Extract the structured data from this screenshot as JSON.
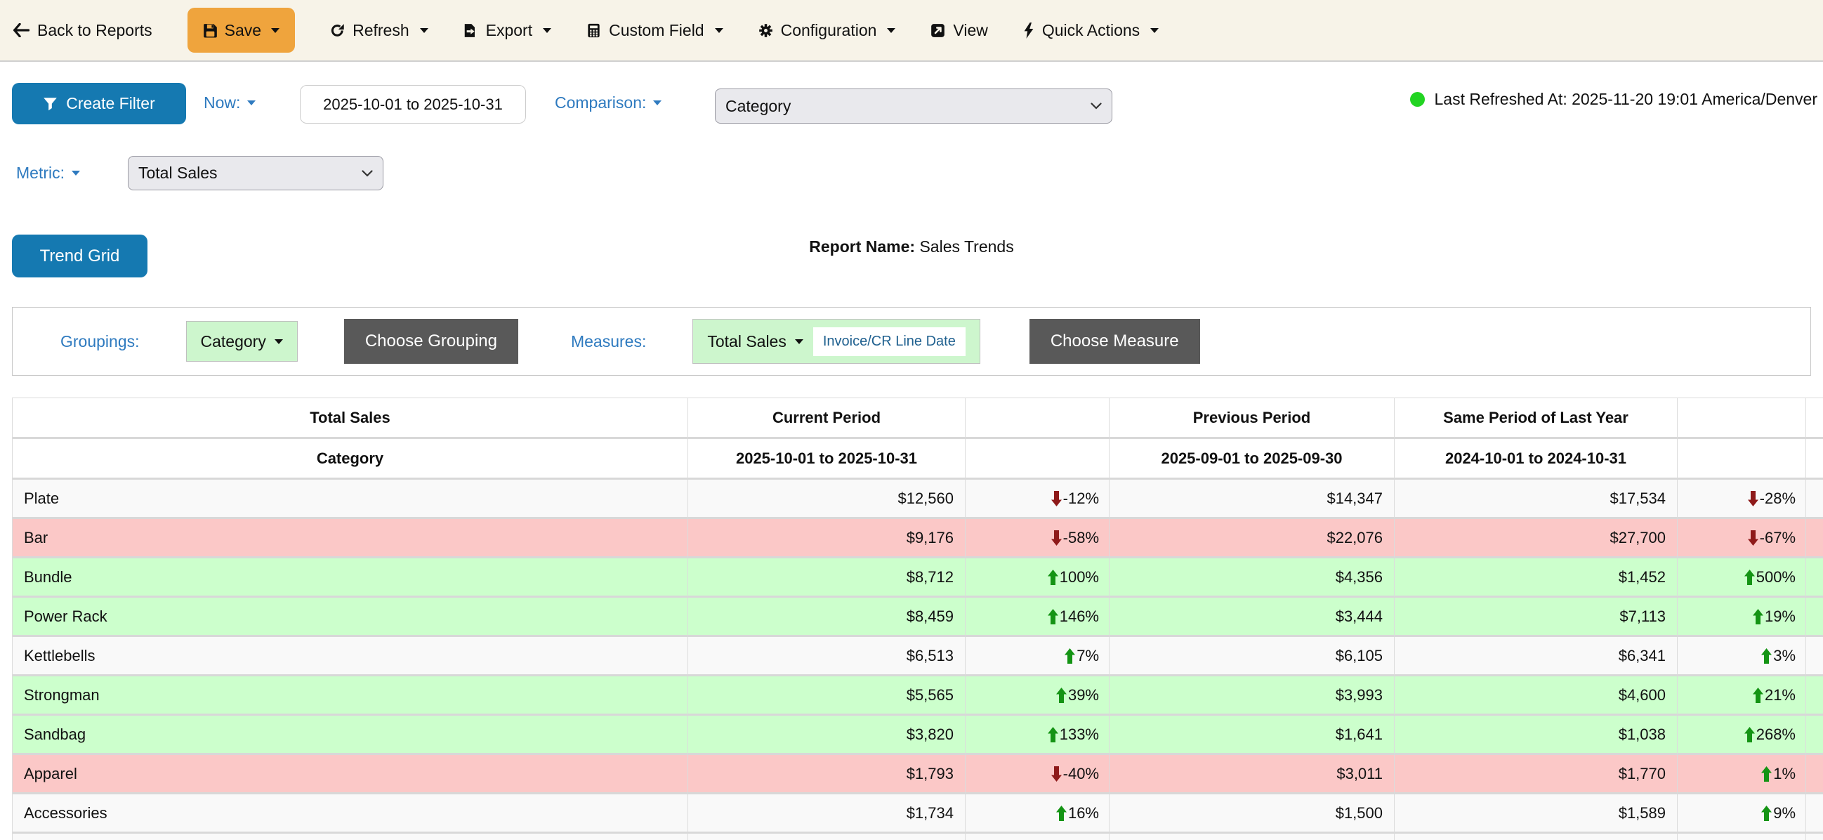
{
  "toolbar": {
    "back_label": "Back to Reports",
    "save_label": "Save",
    "refresh_label": "Refresh",
    "export_label": "Export",
    "custom_field_label": "Custom Field",
    "configuration_label": "Configuration",
    "view_label": "View",
    "quick_actions_label": "Quick Actions"
  },
  "filter_bar": {
    "create_filter_label": "Create Filter",
    "now_label": "Now:",
    "date_range_value": "2025-10-01 to 2025-10-31",
    "comparison_label": "Comparison:",
    "comparison_selected": "Category",
    "metric_label": "Metric:",
    "metric_selected": "Total Sales",
    "last_refreshed_text": "Last Refreshed At: 2025-11-20 19:01 America/Denver"
  },
  "report_header": {
    "view_toggle_label": "Trend Grid",
    "report_name_label": "Report Name:",
    "report_name_value": "Sales Trends"
  },
  "grouping_bar": {
    "groupings_label": "Groupings:",
    "grouping_chip_label": "Category",
    "choose_grouping_label": "Choose Grouping",
    "measures_label": "Measures:",
    "measure_chip_label": "Total Sales",
    "measure_chip_date_field": "Invoice/CR Line Date",
    "choose_measure_label": "Choose Measure"
  },
  "table": {
    "header_row_1": {
      "metric": "Total Sales",
      "current_period": "Current Period",
      "previous_period": "Previous Period",
      "same_period_last_year": "Same Period of Last Year"
    },
    "header_row_2": {
      "dimension": "Category",
      "current_range": "2025-10-01 to 2025-10-31",
      "previous_range": "2025-09-01 to 2025-09-30",
      "same_period_range": "2024-10-01 to 2024-10-31"
    },
    "rows": [
      {
        "category": "Plate",
        "current": "$12,560",
        "change1": "-12%",
        "change1_dir": "down",
        "previous": "$14,347",
        "same_period": "$17,534",
        "change2": "-28%",
        "change2_dir": "down",
        "highlight": "none"
      },
      {
        "category": "Bar",
        "current": "$9,176",
        "change1": "-58%",
        "change1_dir": "down",
        "previous": "$22,076",
        "same_period": "$27,700",
        "change2": "-67%",
        "change2_dir": "down",
        "highlight": "red"
      },
      {
        "category": "Bundle",
        "current": "$8,712",
        "change1": "100%",
        "change1_dir": "up",
        "previous": "$4,356",
        "same_period": "$1,452",
        "change2": "500%",
        "change2_dir": "up",
        "highlight": "green"
      },
      {
        "category": "Power Rack",
        "current": "$8,459",
        "change1": "146%",
        "change1_dir": "up",
        "previous": "$3,444",
        "same_period": "$7,113",
        "change2": "19%",
        "change2_dir": "up",
        "highlight": "green"
      },
      {
        "category": "Kettlebells",
        "current": "$6,513",
        "change1": "7%",
        "change1_dir": "up",
        "previous": "$6,105",
        "same_period": "$6,341",
        "change2": "3%",
        "change2_dir": "up",
        "highlight": "none"
      },
      {
        "category": "Strongman",
        "current": "$5,565",
        "change1": "39%",
        "change1_dir": "up",
        "previous": "$3,993",
        "same_period": "$4,600",
        "change2": "21%",
        "change2_dir": "up",
        "highlight": "green"
      },
      {
        "category": "Sandbag",
        "current": "$3,820",
        "change1": "133%",
        "change1_dir": "up",
        "previous": "$1,641",
        "same_period": "$1,038",
        "change2": "268%",
        "change2_dir": "up",
        "highlight": "green"
      },
      {
        "category": "Apparel",
        "current": "$1,793",
        "change1": "-40%",
        "change1_dir": "down",
        "previous": "$3,011",
        "same_period": "$1,770",
        "change2": "1%",
        "change2_dir": "up",
        "highlight": "red"
      },
      {
        "category": "Accessories",
        "current": "$1,734",
        "change1": "16%",
        "change1_dir": "up",
        "previous": "$1,500",
        "same_period": "$1,589",
        "change2": "9%",
        "change2_dir": "up",
        "highlight": "none"
      },
      {
        "category": "",
        "current": "",
        "change1": "",
        "change1_dir": "",
        "previous": "",
        "same_period": "",
        "change2": "",
        "change2_dir": "",
        "highlight": "none"
      }
    ]
  },
  "icons": {
    "back": "arrow-left",
    "save": "floppy-disk",
    "refresh": "circular-arrow",
    "export": "file-export",
    "custom_field": "calculator",
    "configuration": "gear",
    "view": "open-in-new",
    "quick_actions": "lightning-bolt",
    "create_filter": "funnel",
    "dropdown": "caret-down",
    "status": "green-dot",
    "increase": "up-arrow",
    "decrease": "down-arrow"
  },
  "colors": {
    "toolbar_bg": "#f7f3e8",
    "save_button": "#efa43d",
    "primary_button": "#1579b1",
    "label_blue": "#2e7abf",
    "chip_green": "#cdf6cd",
    "dark_button": "#595959",
    "row_positive": "#ccffcc",
    "row_negative": "#fbc8c7",
    "row_neutral": "#f9f9f9",
    "up_arrow": "#149414",
    "down_arrow": "#8e1a1a",
    "refresh_dot": "#22d422",
    "date_field_blue": "#1f608f"
  }
}
